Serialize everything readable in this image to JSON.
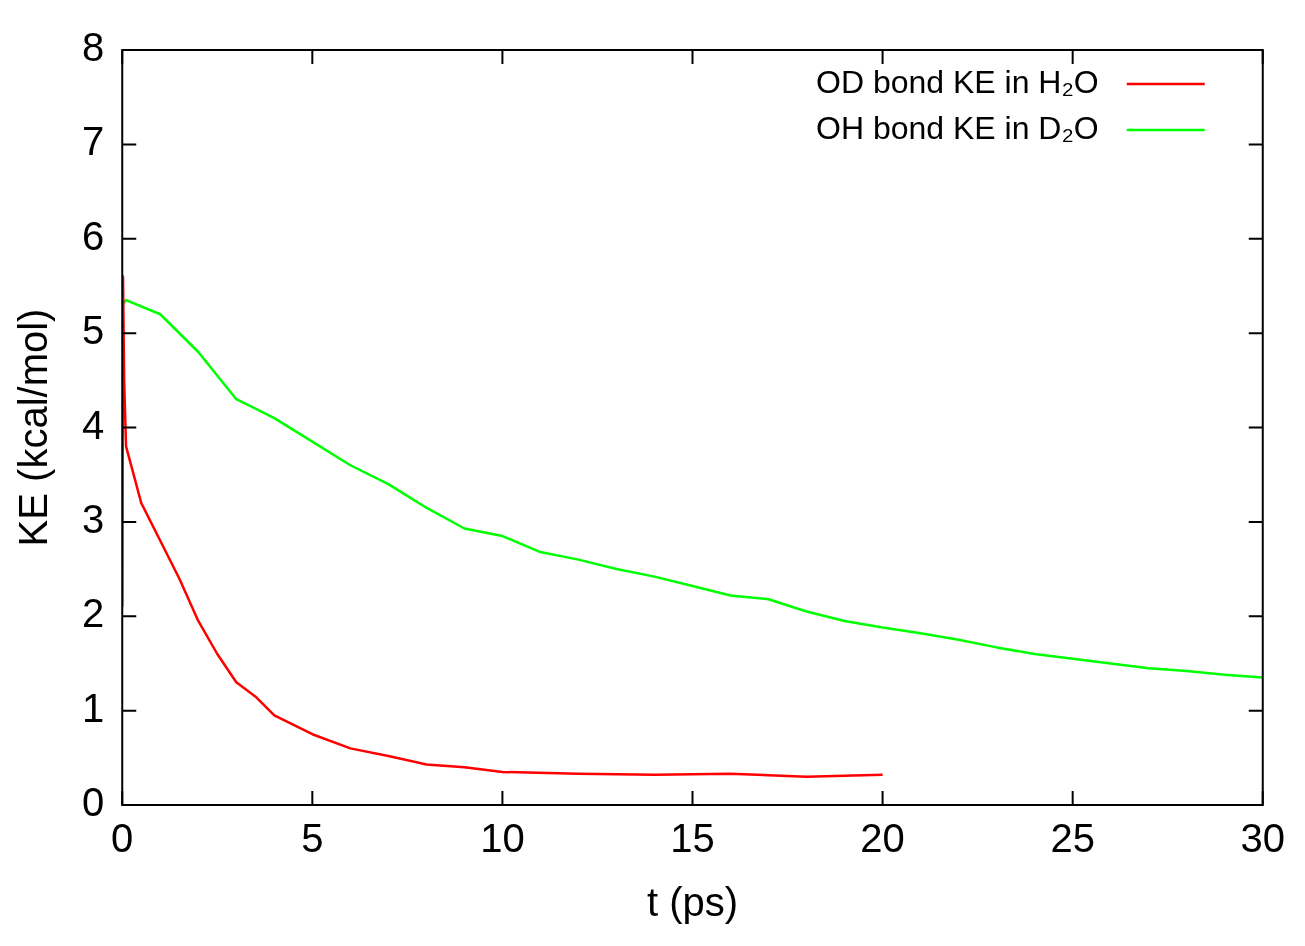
{
  "chart_data": {
    "type": "line",
    "xlabel": "t (ps)",
    "ylabel": "KE (kcal/mol)",
    "xlim": [
      0,
      30
    ],
    "ylim": [
      0,
      8
    ],
    "xticks": [
      0,
      5,
      10,
      15,
      20,
      25,
      30
    ],
    "yticks": [
      0,
      1,
      2,
      3,
      4,
      5,
      6,
      7,
      8
    ],
    "grid": false,
    "legend": "top right",
    "series": [
      {
        "name": "OD bond KE in H₂O",
        "color": "#ff0000",
        "x": [
          0,
          0.02,
          0.05,
          0.1,
          0.3,
          0.5,
          1,
          1.5,
          2,
          2.5,
          3,
          3.5,
          4,
          5,
          6,
          7,
          8,
          9,
          10,
          12,
          14,
          16,
          18,
          20
        ],
        "values": [
          2.1,
          5.6,
          4.5,
          3.8,
          3.5,
          3.2,
          2.8,
          2.4,
          1.95,
          1.6,
          1.3,
          1.15,
          0.95,
          0.75,
          0.6,
          0.52,
          0.43,
          0.4,
          0.35,
          0.33,
          0.32,
          0.33,
          0.3,
          0.32
        ]
      },
      {
        "name": "OH bond KE in D₂O",
        "color": "#00ff00",
        "x": [
          0,
          0.1,
          1,
          2,
          3,
          4,
          5,
          6,
          7,
          8,
          9,
          10,
          11,
          12,
          13,
          14,
          15,
          16,
          17,
          18,
          19,
          20,
          21,
          22,
          23,
          24,
          25,
          26,
          27,
          28,
          29,
          30
        ],
        "values": [
          5.3,
          5.35,
          5.2,
          4.8,
          4.3,
          4.1,
          3.85,
          3.6,
          3.4,
          3.15,
          2.93,
          2.85,
          2.68,
          2.6,
          2.5,
          2.42,
          2.32,
          2.22,
          2.18,
          2.05,
          1.95,
          1.88,
          1.82,
          1.75,
          1.67,
          1.6,
          1.55,
          1.5,
          1.45,
          1.42,
          1.38,
          1.35
        ]
      }
    ]
  }
}
